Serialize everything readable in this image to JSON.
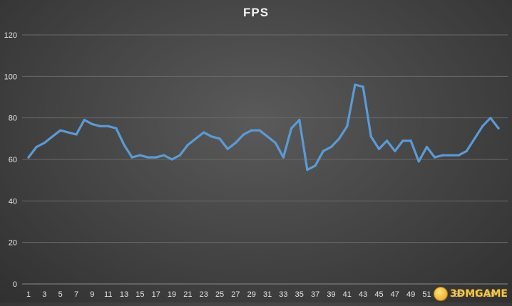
{
  "chart_data": {
    "type": "line",
    "title": "FPS",
    "xlabel": "",
    "ylabel": "",
    "ylim": [
      0,
      120
    ],
    "yticks": [
      0,
      20,
      40,
      60,
      80,
      100,
      120
    ],
    "x_tick_labels": [
      "1",
      "3",
      "5",
      "7",
      "9",
      "11",
      "13",
      "15",
      "17",
      "19",
      "21",
      "23",
      "25",
      "27",
      "29",
      "31",
      "33",
      "35",
      "37",
      "39",
      "41",
      "43",
      "45",
      "47",
      "49",
      "51",
      "53",
      "55",
      "57",
      "59"
    ],
    "grid": true,
    "legend": "none",
    "series": [
      {
        "color": "#5b9bd5",
        "x": [
          1,
          2,
          3,
          4,
          5,
          6,
          7,
          8,
          9,
          10,
          11,
          12,
          13,
          14,
          15,
          16,
          17,
          18,
          19,
          20,
          21,
          22,
          23,
          24,
          25,
          26,
          27,
          28,
          29,
          30,
          31,
          32,
          33,
          34,
          35,
          36,
          37,
          38,
          39,
          40,
          41,
          42,
          43,
          44,
          45,
          46,
          47,
          48,
          49,
          50,
          51,
          52,
          53,
          54,
          55,
          56,
          57,
          58,
          59,
          60
        ],
        "values": [
          61,
          66,
          68,
          71,
          74,
          73,
          72,
          79,
          77,
          76,
          76,
          75,
          67,
          61,
          62,
          61,
          61,
          62,
          60,
          62,
          67,
          70,
          73,
          71,
          70,
          65,
          68,
          72,
          74,
          74,
          71,
          68,
          61,
          75,
          79,
          55,
          57,
          64,
          66,
          70,
          76,
          96,
          95,
          71,
          65,
          69,
          64,
          69,
          69,
          59,
          66,
          61,
          62,
          62,
          62,
          64,
          70,
          76,
          80,
          75
        ]
      }
    ]
  },
  "watermark": {
    "text": "3DMGAME"
  }
}
